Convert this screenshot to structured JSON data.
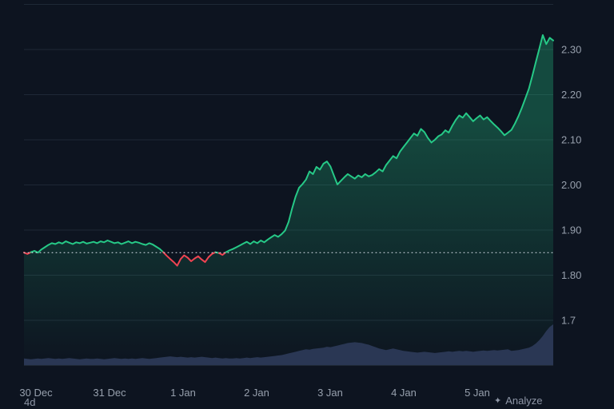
{
  "footer": {
    "left_label": "4d",
    "right_label": "Analyze"
  },
  "chart_data": {
    "type": "line",
    "x_axis": "date",
    "y_axis": "price",
    "baseline_value": 1.85,
    "ylim": [
      1.6,
      2.4
    ],
    "gridline_values": [
      1.6,
      1.7,
      1.8,
      1.9,
      2.0,
      2.1,
      2.2,
      2.3,
      2.4
    ],
    "y_ticks": [
      {
        "value": 2.3,
        "label": "2.30"
      },
      {
        "value": 2.2,
        "label": "2.20"
      },
      {
        "value": 2.1,
        "label": "2.10"
      },
      {
        "value": 2.0,
        "label": "2.00"
      },
      {
        "value": 1.9,
        "label": "1.90"
      },
      {
        "value": 1.8,
        "label": "1.80"
      },
      {
        "value": 1.7,
        "label": "1.7"
      }
    ],
    "x_ticks": [
      {
        "d": 0,
        "label": "30 Dec"
      },
      {
        "d": 1,
        "label": "31 Dec"
      },
      {
        "d": 2,
        "label": "1 Jan"
      },
      {
        "d": 3,
        "label": "2 Jan"
      },
      {
        "d": 4,
        "label": "3 Jan"
      },
      {
        "d": 5,
        "label": "4 Jan"
      },
      {
        "d": 6,
        "label": "5 Jan"
      }
    ],
    "series": [
      {
        "name": "price",
        "values": [
          1.85,
          1.847,
          1.851,
          1.854,
          1.85,
          1.857,
          1.862,
          1.867,
          1.871,
          1.869,
          1.873,
          1.87,
          1.875,
          1.872,
          1.869,
          1.873,
          1.871,
          1.874,
          1.87,
          1.872,
          1.874,
          1.871,
          1.875,
          1.873,
          1.877,
          1.874,
          1.871,
          1.873,
          1.869,
          1.872,
          1.875,
          1.871,
          1.874,
          1.872,
          1.869,
          1.867,
          1.871,
          1.868,
          1.863,
          1.858,
          1.851,
          1.843,
          1.836,
          1.829,
          1.821,
          1.836,
          1.844,
          1.839,
          1.831,
          1.837,
          1.842,
          1.835,
          1.829,
          1.84,
          1.847,
          1.851,
          1.849,
          1.845,
          1.851,
          1.855,
          1.858,
          1.862,
          1.866,
          1.87,
          1.874,
          1.869,
          1.875,
          1.871,
          1.877,
          1.873,
          1.879,
          1.884,
          1.889,
          1.885,
          1.891,
          1.899,
          1.918,
          1.948,
          1.974,
          1.994,
          2.002,
          2.012,
          2.03,
          2.024,
          2.04,
          2.034,
          2.047,
          2.052,
          2.041,
          2.021,
          2.001,
          2.009,
          2.017,
          2.024,
          2.019,
          2.014,
          2.021,
          2.017,
          2.024,
          2.019,
          2.022,
          2.028,
          2.035,
          2.03,
          2.044,
          2.054,
          2.064,
          2.059,
          2.074,
          2.084,
          2.094,
          2.104,
          2.114,
          2.109,
          2.124,
          2.117,
          2.104,
          2.094,
          2.1,
          2.108,
          2.112,
          2.121,
          2.116,
          2.131,
          2.144,
          2.154,
          2.149,
          2.159,
          2.15,
          2.141,
          2.148,
          2.154,
          2.145,
          2.15,
          2.142,
          2.134,
          2.127,
          2.119,
          2.11,
          2.116,
          2.122,
          2.136,
          2.152,
          2.171,
          2.192,
          2.213,
          2.242,
          2.272,
          2.302,
          2.332,
          2.312,
          2.326,
          2.32
        ]
      },
      {
        "name": "volume_relative",
        "values": [
          0.16,
          0.15,
          0.14,
          0.15,
          0.16,
          0.15,
          0.16,
          0.17,
          0.16,
          0.15,
          0.16,
          0.15,
          0.16,
          0.17,
          0.16,
          0.15,
          0.14,
          0.15,
          0.16,
          0.15,
          0.15,
          0.16,
          0.15,
          0.14,
          0.15,
          0.16,
          0.17,
          0.16,
          0.15,
          0.16,
          0.15,
          0.16,
          0.15,
          0.16,
          0.17,
          0.16,
          0.15,
          0.16,
          0.17,
          0.18,
          0.19,
          0.2,
          0.21,
          0.2,
          0.19,
          0.2,
          0.19,
          0.18,
          0.19,
          0.18,
          0.19,
          0.2,
          0.19,
          0.18,
          0.17,
          0.18,
          0.17,
          0.16,
          0.17,
          0.16,
          0.16,
          0.17,
          0.16,
          0.17,
          0.18,
          0.17,
          0.18,
          0.19,
          0.18,
          0.19,
          0.2,
          0.21,
          0.22,
          0.23,
          0.24,
          0.26,
          0.28,
          0.3,
          0.32,
          0.34,
          0.36,
          0.38,
          0.37,
          0.39,
          0.4,
          0.41,
          0.42,
          0.44,
          0.43,
          0.45,
          0.47,
          0.49,
          0.51,
          0.53,
          0.54,
          0.55,
          0.54,
          0.53,
          0.51,
          0.49,
          0.46,
          0.43,
          0.4,
          0.38,
          0.36,
          0.38,
          0.4,
          0.38,
          0.36,
          0.34,
          0.33,
          0.32,
          0.31,
          0.3,
          0.31,
          0.32,
          0.31,
          0.3,
          0.29,
          0.3,
          0.31,
          0.32,
          0.33,
          0.32,
          0.33,
          0.34,
          0.33,
          0.34,
          0.33,
          0.32,
          0.33,
          0.34,
          0.35,
          0.34,
          0.35,
          0.36,
          0.35,
          0.36,
          0.37,
          0.38,
          0.34,
          0.35,
          0.36,
          0.38,
          0.4,
          0.42,
          0.46,
          0.52,
          0.6,
          0.7,
          0.82,
          0.92,
          0.98
        ]
      }
    ],
    "colors": {
      "up": "#26c987",
      "down": "#ef4452",
      "baseline": "#dfe6f1",
      "grid": "#1e2836",
      "volume": "#2d3b5a",
      "background": "#0d1420",
      "label": "#97a0ad"
    }
  }
}
